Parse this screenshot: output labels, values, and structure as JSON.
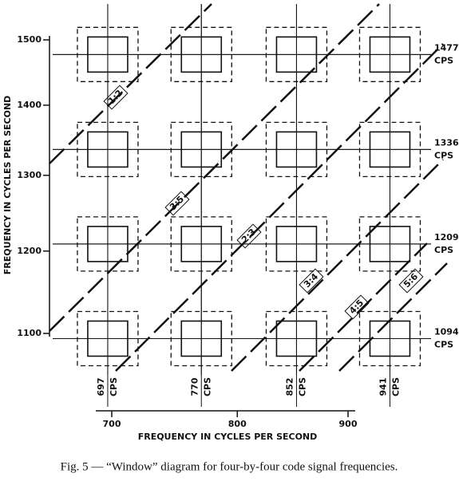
{
  "figure": {
    "y_axis": {
      "title": "FREQUENCY IN CYCLES PER SECOND",
      "ticks": [
        1500,
        1400,
        1300,
        1200,
        1100
      ]
    },
    "x_axis": {
      "title": "FREQUENCY IN CYCLES PER SECOND",
      "ticks": [
        700,
        800,
        900
      ]
    },
    "row_frequencies": [
      {
        "value": 1477,
        "unit": "CPS"
      },
      {
        "value": 1336,
        "unit": "CPS"
      },
      {
        "value": 1209,
        "unit": "CPS"
      },
      {
        "value": 1094,
        "unit": "CPS"
      }
    ],
    "column_frequencies": [
      {
        "value": 697,
        "unit": "CPS"
      },
      {
        "value": 770,
        "unit": "CPS"
      },
      {
        "value": 852,
        "unit": "CPS"
      },
      {
        "value": 941,
        "unit": "CPS"
      }
    ],
    "ratios": [
      "1:2",
      "3:5",
      "2:3",
      "3:4",
      "4:5",
      "5:6"
    ],
    "caption": "Fig. 5 — “Window” diagram for four-by-four code signal frequencies."
  }
}
